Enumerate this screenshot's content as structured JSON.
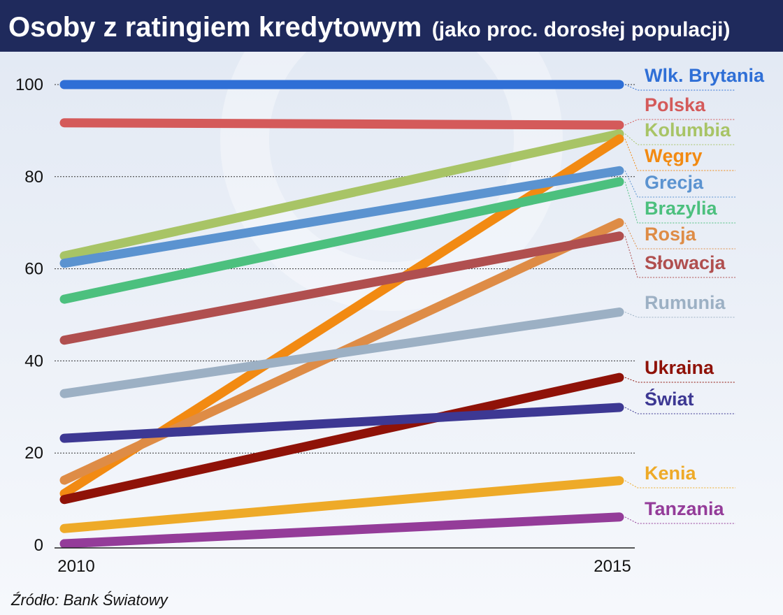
{
  "header": {
    "title": "Osoby z ratingiem kredytowym",
    "subtitle": "(jako proc. dorosłej populacji)"
  },
  "source": "Źródło: Bank Światowy",
  "colors": {
    "header_bg": "#1f2a5c",
    "plot_bg_top": "#e1e8f3",
    "plot_bg_bottom": "#f6f8fc"
  },
  "chart_data": {
    "type": "line",
    "title": "Osoby z ratingiem kredytowym",
    "subtitle": "(jako proc. dorosłej populacji)",
    "x": [
      "2010",
      "2015"
    ],
    "ylim": [
      0,
      100
    ],
    "yticks": [
      "0",
      "20",
      "40",
      "60",
      "80",
      "100"
    ],
    "grid": true,
    "legend": "right-end labels",
    "series": [
      {
        "name": "Wlk. Brytania",
        "color": "#2f6fd6",
        "values": [
          100,
          100
        ]
      },
      {
        "name": "Polska",
        "color": "#d45a5a",
        "values": [
          91.7,
          91.2
        ]
      },
      {
        "name": "Kolumbia",
        "color": "#a8c466",
        "values": [
          62.8,
          89.3
        ]
      },
      {
        "name": "Węgry",
        "color": "#f28a12",
        "values": [
          11.2,
          88.2
        ]
      },
      {
        "name": "Grecja",
        "color": "#5b93d0",
        "values": [
          61.2,
          81.3
        ]
      },
      {
        "name": "Brazylia",
        "color": "#4cc07e",
        "values": [
          53.4,
          78.9
        ]
      },
      {
        "name": "Rosja",
        "color": "#de8c46",
        "values": [
          14.1,
          70.0
        ]
      },
      {
        "name": "Słowacja",
        "color": "#b04f4f",
        "values": [
          44.5,
          67.1
        ]
      },
      {
        "name": "Rumunia",
        "color": "#9cb0c4",
        "values": [
          32.9,
          50.6
        ]
      },
      {
        "name": "Ukraina",
        "color": "#8f1208",
        "values": [
          9.9,
          36.4
        ]
      },
      {
        "name": "Świat",
        "color": "#3d3893",
        "values": [
          23.2,
          29.9
        ]
      },
      {
        "name": "Kenia",
        "color": "#eeaa28",
        "values": [
          3.6,
          14.0
        ]
      },
      {
        "name": "Tanzania",
        "color": "#943c99",
        "values": [
          0.3,
          6.1
        ]
      }
    ]
  }
}
